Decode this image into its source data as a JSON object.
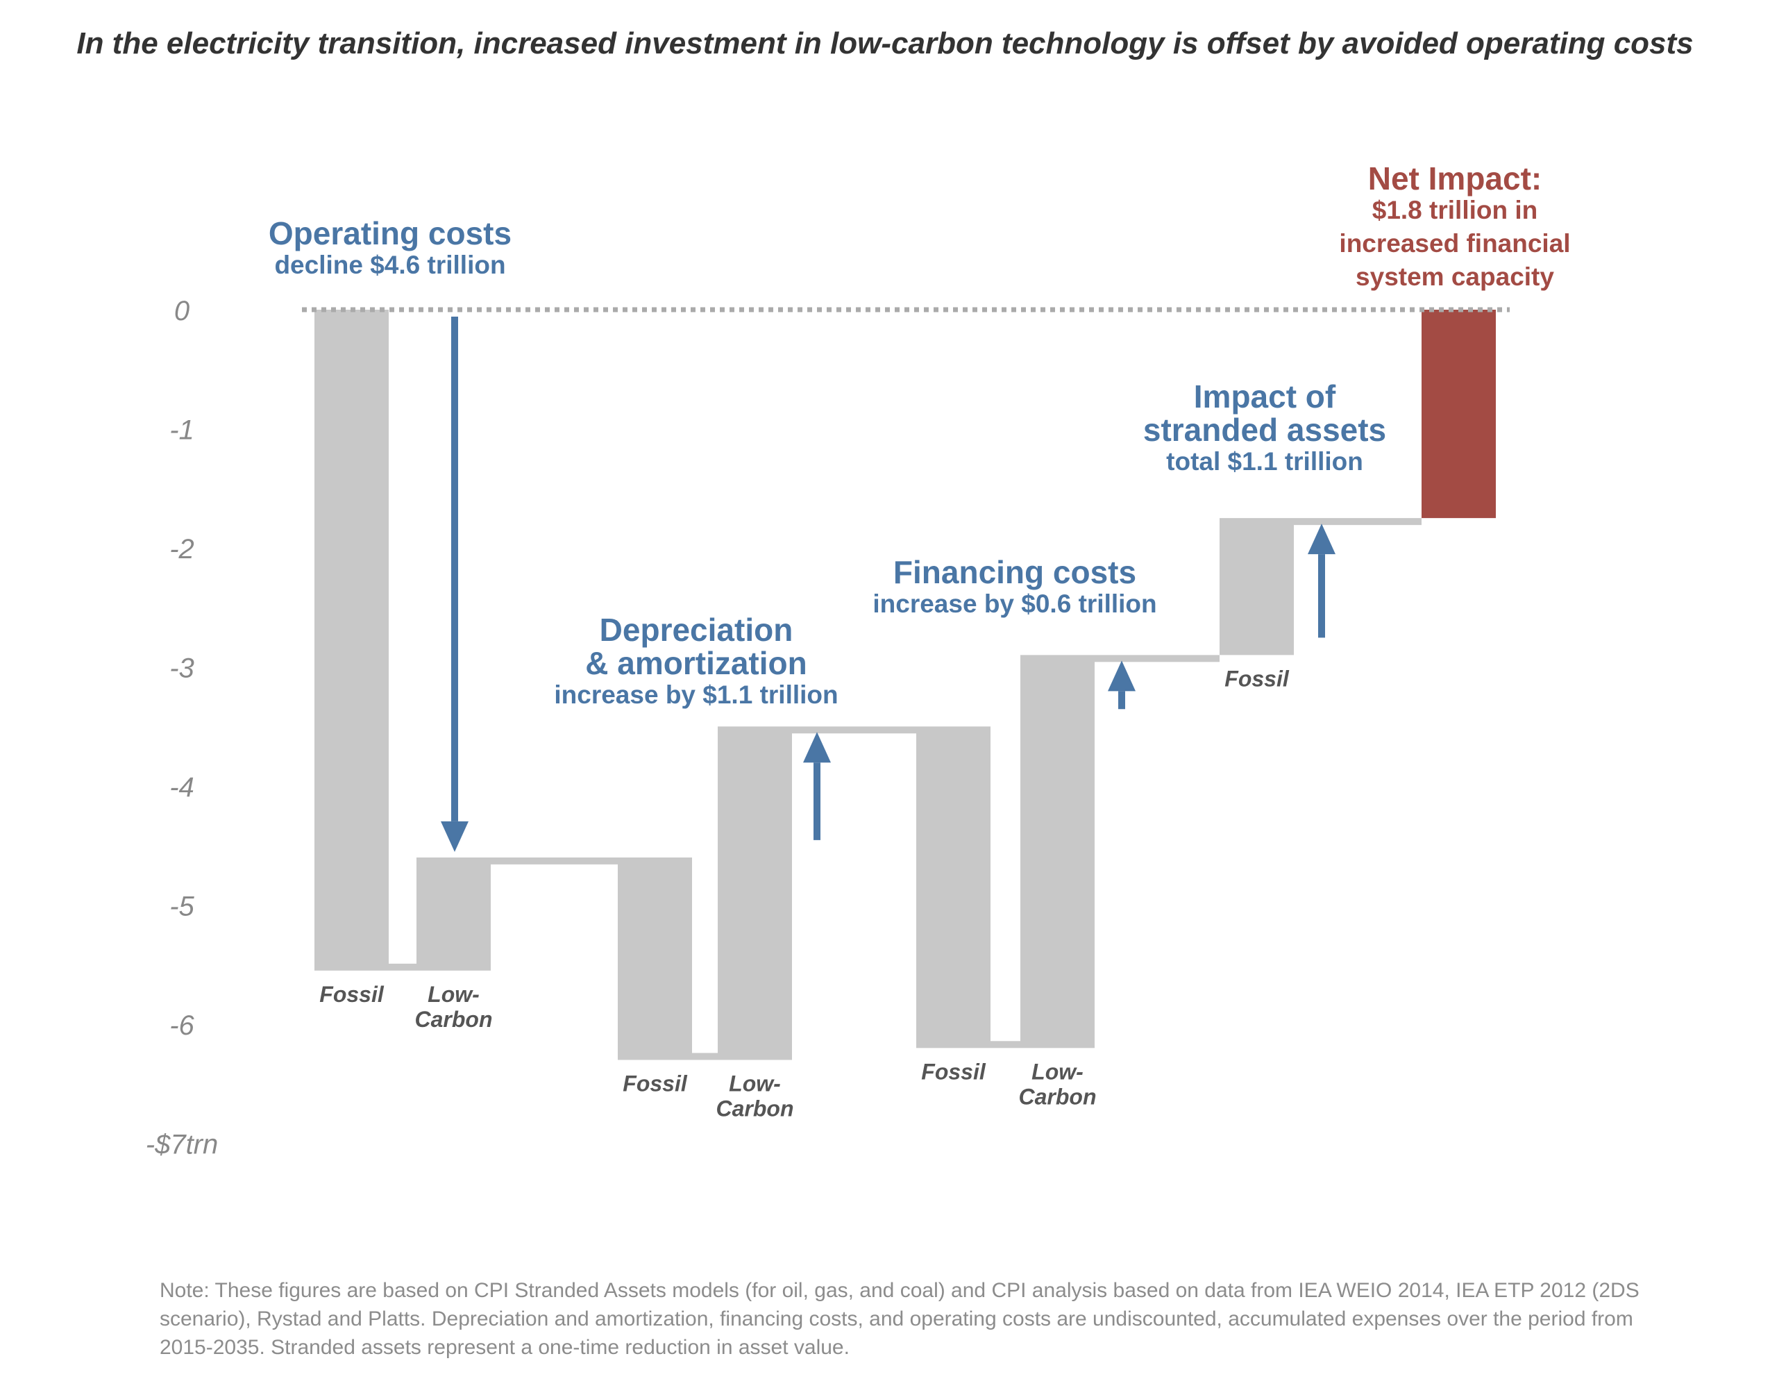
{
  "title": {
    "pre": "In the ",
    "bold": "electricity transition",
    "post": ", increased investment in low-carbon technology is offset by avoided operating costs"
  },
  "note": "Note: These figures are based on CPI Stranded Assets models (for oil, gas, and coal) and CPI analysis based on data from IEA WEIO 2014, IEA ETP 2012 (2DS scenario), Rystad and Platts. Depreciation and amortization, financing costs, and operating costs are undiscounted, accumulated expenses over the period from 2015-2035. Stranded assets represent a one-time reduction in asset value.",
  "colors": {
    "bar": "#c8c8c8",
    "accent": "#4a76a5",
    "net": "#a34b44",
    "zero_line": "#aaaaaa",
    "axis_text": "#888888",
    "bar_label": "#555555"
  },
  "chart_data": {
    "type": "bar",
    "subtype": "waterfall",
    "ylim": [
      -7,
      0
    ],
    "y_ticks": [
      {
        "value": 0,
        "label": "0"
      },
      {
        "value": -1,
        "label": "-1"
      },
      {
        "value": -2,
        "label": "-2"
      },
      {
        "value": -3,
        "label": "-3"
      },
      {
        "value": -4,
        "label": "-4"
      },
      {
        "value": -5,
        "label": "-5"
      },
      {
        "value": -6,
        "label": "-6"
      },
      {
        "value": -7,
        "label": "-$7trn"
      }
    ],
    "zero_line": "dotted",
    "bars": [
      {
        "label": [
          "Fossil"
        ],
        "top": 0,
        "bottom": -5.55,
        "color_key": "bar"
      },
      {
        "label": [
          "Low-",
          "Carbon"
        ],
        "top": -4.6,
        "bottom": -5.55,
        "color_key": "bar"
      },
      {
        "label": [
          "Fossil"
        ],
        "top": -4.6,
        "bottom": -6.3,
        "color_key": "bar"
      },
      {
        "label": [
          "Low-",
          "Carbon"
        ],
        "top": -3.5,
        "bottom": -6.3,
        "color_key": "bar"
      },
      {
        "label": [
          "Fossil"
        ],
        "top": -3.5,
        "bottom": -6.2,
        "color_key": "bar"
      },
      {
        "label": [
          "Low-",
          "Carbon"
        ],
        "top": -2.9,
        "bottom": -6.2,
        "color_key": "bar"
      },
      {
        "label": [
          "Fossil"
        ],
        "top": -1.75,
        "bottom": -2.9,
        "color_key": "bar"
      },
      {
        "label": [],
        "top": 0,
        "bottom": -1.75,
        "color_key": "net"
      }
    ],
    "steps": [
      {
        "name": "Operating costs",
        "detail": "decline $4.6 trillion",
        "change": -4.6,
        "from": 0,
        "to": -4.6
      },
      {
        "name": "Depreciation & amortization",
        "detail": "increase by $1.1 trillion",
        "change": 1.1,
        "from": -4.6,
        "to": -3.5
      },
      {
        "name": "Financing costs",
        "detail": "increase by $0.6 trillion",
        "change": 0.6,
        "from": -3.5,
        "to": -2.9
      },
      {
        "name": "Impact of stranded assets",
        "detail": "total $1.1 trillion",
        "change": 1.1,
        "from": -2.9,
        "to": -1.75
      }
    ],
    "annotations": [
      {
        "lines": [
          "Operating costs"
        ],
        "sub": [
          "decline $4.6 trillion"
        ]
      },
      {
        "lines": [
          "Depreciation",
          "& amortization"
        ],
        "sub": [
          "increase by $1.1 trillion"
        ]
      },
      {
        "lines": [
          "Financing costs"
        ],
        "sub": [
          "increase by $0.6 trillion"
        ]
      },
      {
        "lines": [
          "Impact of",
          "stranded assets"
        ],
        "sub": [
          "total $1.1 trillion"
        ]
      },
      {
        "lines": [
          "Net Impact:"
        ],
        "sub": [
          "$1.8 trillion in",
          "increased financial",
          "system capacity"
        ]
      }
    ],
    "net_impact": 1.8
  }
}
